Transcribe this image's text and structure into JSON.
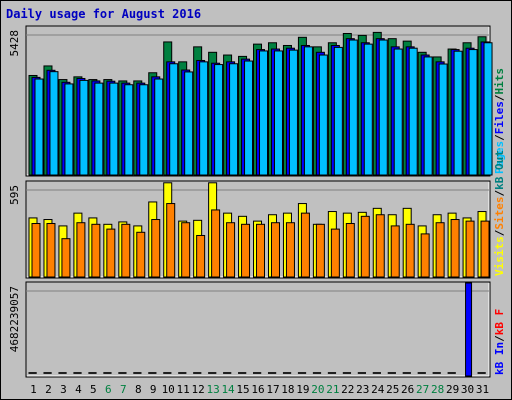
{
  "chart_data": {
    "type": "bar",
    "title": "Daily usage for August 2016",
    "categories": [
      "1",
      "2",
      "3",
      "4",
      "5",
      "6",
      "7",
      "8",
      "9",
      "10",
      "11",
      "12",
      "13",
      "14",
      "15",
      "16",
      "17",
      "18",
      "19",
      "20",
      "21",
      "22",
      "23",
      "24",
      "25",
      "26",
      "27",
      "28",
      "29",
      "30",
      "31"
    ],
    "weekend_days": [
      "6",
      "7",
      "13",
      "14",
      "20",
      "21",
      "27",
      "28"
    ],
    "panels": [
      {
        "id": "top",
        "max_label": "5428",
        "ylim": [
          0,
          5428
        ],
        "legend": [
          {
            "text": "Pages",
            "color": "#00c0ff"
          },
          {
            "text": "Files",
            "color": "#0000ff"
          },
          {
            "text": "Hits",
            "color": "#008040"
          }
        ],
        "series": [
          {
            "name": "Hits",
            "color": "#008040",
            "values": [
              3650,
              4000,
              3500,
              3600,
              3500,
              3500,
              3450,
              3450,
              3750,
              4880,
              4150,
              4700,
              4500,
              4400,
              4350,
              4800,
              4850,
              4750,
              5050,
              4700,
              4850,
              5190,
              5120,
              5230,
              5000,
              4910,
              4500,
              4330,
              4620,
              4850,
              5070
            ]
          },
          {
            "name": "Files",
            "color": "#0000ff",
            "values": [
              3580,
              3840,
              3400,
              3540,
              3450,
              3440,
              3370,
              3370,
              3600,
              4150,
              3850,
              4200,
              4100,
              4150,
              4250,
              4600,
              4620,
              4650,
              4750,
              4500,
              4750,
              5000,
              4850,
              5000,
              4700,
              4700,
              4400,
              4150,
              4600,
              4650,
              4880
            ]
          },
          {
            "name": "Pages",
            "color": "#00c0ff",
            "values": [
              3520,
              3790,
              3340,
              3470,
              3370,
              3370,
              3310,
              3310,
              3520,
              4080,
              3780,
              4150,
              4050,
              4080,
              4180,
              4550,
              4550,
              4580,
              4700,
              4400,
              4680,
              4950,
              4800,
              4950,
              4620,
              4650,
              4330,
              4070,
              4540,
              4600,
              4850
            ]
          }
        ]
      },
      {
        "id": "middle",
        "max_label": "595",
        "ylim": [
          0,
          595
        ],
        "legend": [
          {
            "text": "Visits",
            "color": "#ffff00"
          },
          {
            "text": "Sites",
            "color": "#ff8000"
          },
          {
            "text": "kB Out",
            "color": "#008080"
          }
        ],
        "series": [
          {
            "name": "Visits",
            "color": "#ffff00",
            "values": [
              370,
              360,
              320,
              400,
              370,
              330,
              345,
              320,
              470,
              590,
              350,
              355,
              590,
              400,
              380,
              350,
              390,
              400,
              460,
              330,
              410,
              400,
              405,
              430,
              390,
              430,
              320,
              390,
              400,
              370,
              410
            ]
          },
          {
            "name": "Sites",
            "color": "#ff8000",
            "values": [
              335,
              335,
              240,
              340,
              330,
              300,
              330,
              280,
              360,
              460,
              340,
              260,
              420,
              340,
              330,
              330,
              340,
              340,
              400,
              330,
              300,
              335,
              380,
              390,
              320,
              330,
              270,
              340,
              360,
              350,
              350
            ]
          }
        ]
      },
      {
        "id": "bottom",
        "max_label": "4682239057",
        "ylim": [
          0,
          4682239057
        ],
        "legend": [
          {
            "text": "kB In",
            "color": "#0000ff"
          },
          {
            "text": "kB F",
            "color": "#ff0000"
          }
        ],
        "series": [
          {
            "name": "kB In",
            "color": "#0000ff",
            "values": [
              3500,
              3500,
              3500,
              3500,
              3500,
              3500,
              3500,
              3500,
              3500,
              3500,
              3500,
              3500,
              3500,
              3500,
              3500,
              3500,
              3500,
              3500,
              3500,
              3500,
              3500,
              3500,
              3500,
              3500,
              3500,
              3500,
              3500,
              3500,
              3500,
              4682239057,
              3500
            ]
          }
        ]
      }
    ]
  }
}
